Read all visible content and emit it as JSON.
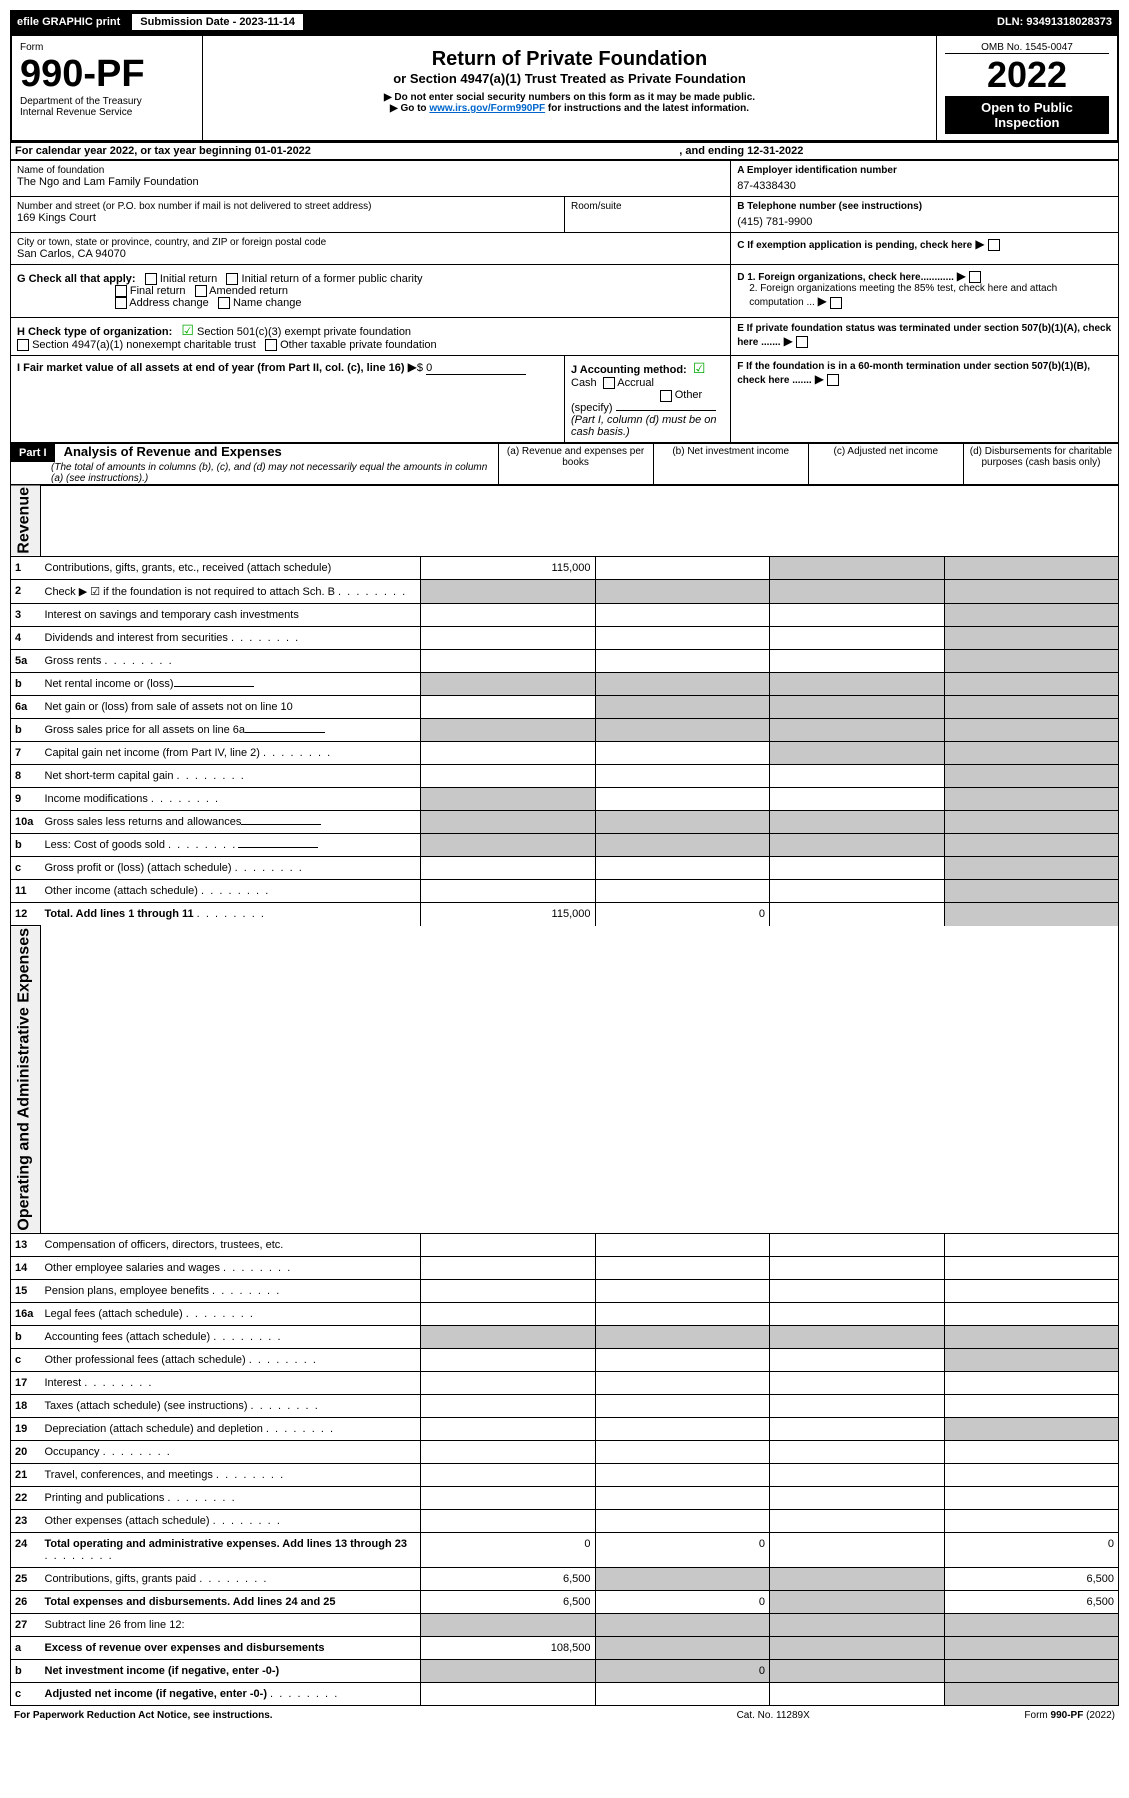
{
  "topbar": {
    "efile": "efile GRAPHIC print",
    "sub_label": "Submission Date - 2023-11-14",
    "dln": "DLN: 93491318028373"
  },
  "header": {
    "form_label": "Form",
    "form_number": "990-PF",
    "dept1": "Department of the Treasury",
    "dept2": "Internal Revenue Service",
    "title": "Return of Private Foundation",
    "subtitle": "or Section 4947(a)(1) Trust Treated as Private Foundation",
    "note1": "▶ Do not enter social security numbers on this form as it may be made public.",
    "note2_prefix": "▶ Go to ",
    "note2_link": "www.irs.gov/Form990PF",
    "note2_suffix": " for instructions and the latest information.",
    "omb": "OMB No. 1545-0047",
    "year": "2022",
    "inspect": "Open to Public Inspection"
  },
  "calendar": {
    "text": "For calendar year 2022, or tax year beginning 01-01-2022",
    "ending_label": ", and ending 12-31-2022"
  },
  "info": {
    "name_label": "Name of foundation",
    "name": "The Ngo and Lam Family Foundation",
    "addr_label": "Number and street (or P.O. box number if mail is not delivered to street address)",
    "addr": "169 Kings Court",
    "room_label": "Room/suite",
    "city_label": "City or town, state or province, country, and ZIP or foreign postal code",
    "city": "San Carlos, CA  94070",
    "a_label": "A Employer identification number",
    "ein": "87-4338430",
    "b_label": "B Telephone number (see instructions)",
    "phone": "(415) 781-9900",
    "c_label": "C If exemption application is pending, check here",
    "g_label": "G Check all that apply:",
    "g_opts": [
      "Initial return",
      "Initial return of a former public charity",
      "Final return",
      "Amended return",
      "Address change",
      "Name change"
    ],
    "d1": "D 1. Foreign organizations, check here............",
    "d2": "2. Foreign organizations meeting the 85% test, check here and attach computation ...",
    "h_label": "H Check type of organization:",
    "h1": "Section 501(c)(3) exempt private foundation",
    "h2": "Section 4947(a)(1) nonexempt charitable trust",
    "h3": "Other taxable private foundation",
    "e_label": "E If private foundation status was terminated under section 507(b)(1)(A), check here .......",
    "i_label": "I Fair market value of all assets at end of year (from Part II, col. (c), line 16)",
    "i_val": "0",
    "j_label": "J Accounting method:",
    "j_cash": "Cash",
    "j_accrual": "Accrual",
    "j_other": "Other (specify)",
    "j_note": "(Part I, column (d) must be on cash basis.)",
    "f_label": "F If the foundation is in a 60-month termination under section 507(b)(1)(B), check here ......."
  },
  "part1": {
    "label": "Part I",
    "title": "Analysis of Revenue and Expenses",
    "title_note": "(The total of amounts in columns (b), (c), and (d) may not necessarily equal the amounts in column (a) (see instructions).)",
    "cols": {
      "a": "(a) Revenue and expenses per books",
      "b": "(b) Net investment income",
      "c": "(c) Adjusted net income",
      "d": "(d) Disbursements for charitable purposes (cash basis only)"
    }
  },
  "sections": {
    "revenue": "Revenue",
    "expenses": "Operating and Administrative Expenses"
  },
  "rows": [
    {
      "n": "1",
      "t": "Contributions, gifts, grants, etc., received (attach schedule)",
      "a": "115,000"
    },
    {
      "n": "2",
      "t": "Check ▶ ☑ if the foundation is not required to attach Sch. B",
      "dots": true,
      "hasCheck": true
    },
    {
      "n": "3",
      "t": "Interest on savings and temporary cash investments"
    },
    {
      "n": "4",
      "t": "Dividends and interest from securities",
      "dots": true
    },
    {
      "n": "5a",
      "t": "Gross rents",
      "dots": true
    },
    {
      "n": "b",
      "t": "Net rental income or (loss)",
      "inline": true
    },
    {
      "n": "6a",
      "t": "Net gain or (loss) from sale of assets not on line 10"
    },
    {
      "n": "b",
      "t": "Gross sales price for all assets on line 6a",
      "inline": true
    },
    {
      "n": "7",
      "t": "Capital gain net income (from Part IV, line 2)",
      "dots": true
    },
    {
      "n": "8",
      "t": "Net short-term capital gain",
      "dots": true
    },
    {
      "n": "9",
      "t": "Income modifications",
      "dots": true
    },
    {
      "n": "10a",
      "t": "Gross sales less returns and allowances",
      "inline": true
    },
    {
      "n": "b",
      "t": "Less: Cost of goods sold",
      "dots": true,
      "inline": true
    },
    {
      "n": "c",
      "t": "Gross profit or (loss) (attach schedule)",
      "dots": true
    },
    {
      "n": "11",
      "t": "Other income (attach schedule)",
      "dots": true
    },
    {
      "n": "12",
      "t": "Total. Add lines 1 through 11",
      "dots": true,
      "bold": true,
      "a": "115,000",
      "b": "0"
    },
    {
      "n": "13",
      "t": "Compensation of officers, directors, trustees, etc."
    },
    {
      "n": "14",
      "t": "Other employee salaries and wages",
      "dots": true
    },
    {
      "n": "15",
      "t": "Pension plans, employee benefits",
      "dots": true
    },
    {
      "n": "16a",
      "t": "Legal fees (attach schedule)",
      "dots": true
    },
    {
      "n": "b",
      "t": "Accounting fees (attach schedule)",
      "dots": true
    },
    {
      "n": "c",
      "t": "Other professional fees (attach schedule)",
      "dots": true
    },
    {
      "n": "17",
      "t": "Interest",
      "dots": true
    },
    {
      "n": "18",
      "t": "Taxes (attach schedule) (see instructions)",
      "dots": true
    },
    {
      "n": "19",
      "t": "Depreciation (attach schedule) and depletion",
      "dots": true
    },
    {
      "n": "20",
      "t": "Occupancy",
      "dots": true
    },
    {
      "n": "21",
      "t": "Travel, conferences, and meetings",
      "dots": true
    },
    {
      "n": "22",
      "t": "Printing and publications",
      "dots": true
    },
    {
      "n": "23",
      "t": "Other expenses (attach schedule)",
      "dots": true
    },
    {
      "n": "24",
      "t": "Total operating and administrative expenses. Add lines 13 through 23",
      "dots": true,
      "bold": true,
      "a": "0",
      "b": "0",
      "d": "0"
    },
    {
      "n": "25",
      "t": "Contributions, gifts, grants paid",
      "dots": true,
      "a": "6,500",
      "d": "6,500"
    },
    {
      "n": "26",
      "t": "Total expenses and disbursements. Add lines 24 and 25",
      "bold": true,
      "a": "6,500",
      "b": "0",
      "d": "6,500"
    },
    {
      "n": "27",
      "t": "Subtract line 26 from line 12:"
    },
    {
      "n": "a",
      "t": "Excess of revenue over expenses and disbursements",
      "bold": true,
      "a": "108,500"
    },
    {
      "n": "b",
      "t": "Net investment income (if negative, enter -0-)",
      "bold": true,
      "b": "0"
    },
    {
      "n": "c",
      "t": "Adjusted net income (if negative, enter -0-)",
      "bold": true,
      "dots": true
    }
  ],
  "footer": {
    "left": "For Paperwork Reduction Act Notice, see instructions.",
    "mid": "Cat. No. 11289X",
    "right": "Form 990-PF (2022)"
  }
}
